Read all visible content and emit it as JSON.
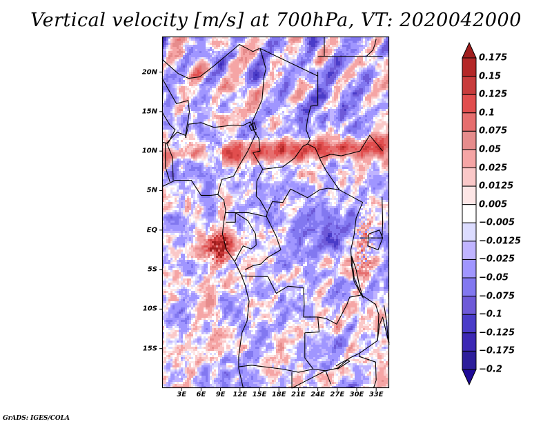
{
  "title": "Vertical velocity [m/s] at 700hPa, VT: 2020042000",
  "credit": "GrADS: IGES/COLA",
  "map": {
    "variable": "Vertical velocity",
    "units": "m/s",
    "level": "700hPa",
    "valid_time": "2020042000",
    "lon_range_deg": [
      0,
      35
    ],
    "lat_range_deg": [
      -20,
      24.5
    ],
    "lat_ticks": [
      {
        "label": "20N",
        "value": 20
      },
      {
        "label": "15N",
        "value": 15
      },
      {
        "label": "10N",
        "value": 10
      },
      {
        "label": "5N",
        "value": 5
      },
      {
        "label": "EQ",
        "value": 0
      },
      {
        "label": "5S",
        "value": -5
      },
      {
        "label": "10S",
        "value": -10
      },
      {
        "label": "15S",
        "value": -15
      }
    ],
    "lon_ticks": [
      {
        "label": "3E",
        "value": 3
      },
      {
        "label": "6E",
        "value": 6
      },
      {
        "label": "9E",
        "value": 9
      },
      {
        "label": "12E",
        "value": 12
      },
      {
        "label": "15E",
        "value": 15
      },
      {
        "label": "18E",
        "value": 18
      },
      {
        "label": "21E",
        "value": 21
      },
      {
        "label": "24E",
        "value": 24
      },
      {
        "label": "27E",
        "value": 27
      },
      {
        "label": "30E",
        "value": 30
      },
      {
        "label": "33E",
        "value": 33
      }
    ],
    "features": [
      {
        "name": "Sahel upward-motion band",
        "sign": "positive",
        "lat_center": 10.5,
        "lon_range": [
          10,
          33
        ]
      },
      {
        "name": "Gulf of Guinea coastal cluster",
        "sign": "positive",
        "lat_center": -2,
        "lon_range": [
          5,
          12
        ]
      },
      {
        "name": "Sahara NE-SW streaks",
        "sign": "mixed",
        "lat_center": 18,
        "lon_range": [
          0,
          15
        ]
      },
      {
        "name": "Western Rift / Great Lakes convection",
        "sign": "positive",
        "lat_center": -3,
        "lon_range": [
          28,
          34
        ]
      },
      {
        "name": "Central Congo subsidence",
        "sign": "negative",
        "lat_center": 1,
        "lon_range": [
          20,
          30
        ]
      }
    ]
  },
  "colorbar": {
    "levels": [
      "0.175",
      "0.15",
      "0.125",
      "0.1",
      "0.075",
      "0.05",
      "0.025",
      "0.0125",
      "0.005",
      "-0.005",
      "-0.0125",
      "-0.025",
      "-0.05",
      "-0.075",
      "-0.1",
      "-0.125",
      "-0.175",
      "-0.2"
    ],
    "colors": [
      "#a01e1e",
      "#b42828",
      "#c83c3c",
      "#e14e4e",
      "#e66e6e",
      "#e68c8c",
      "#f5a5a5",
      "#fac8c8",
      "#fde6e6",
      "#ffffff",
      "#dcdcff",
      "#c0b4ff",
      "#a096ff",
      "#8278f0",
      "#6e5ad8",
      "#4a3cc8",
      "#3c28b4",
      "#2d1e9b",
      "#1e0a96"
    ],
    "extend": "both"
  }
}
